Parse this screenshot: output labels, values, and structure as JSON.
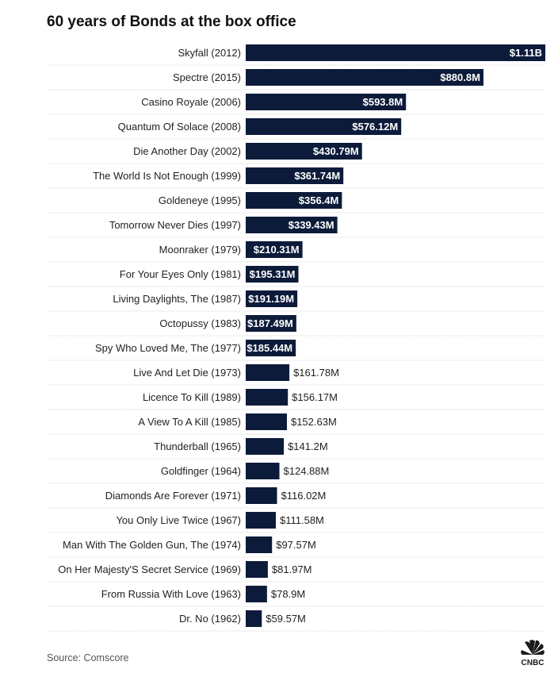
{
  "chart_data": {
    "type": "bar",
    "orientation": "horizontal",
    "title": "60 years of Bonds at the box office",
    "source": "Source: Comscore",
    "unit": "USD",
    "categories": [
      "Skyfall (2012)",
      "Spectre (2015)",
      "Casino Royale (2006)",
      "Quantum Of Solace (2008)",
      "Die Another Day (2002)",
      "The World Is Not Enough (1999)",
      "Goldeneye (1995)",
      "Tomorrow Never Dies (1997)",
      "Moonraker (1979)",
      "For Your Eyes Only (1981)",
      "Living Daylights, The (1987)",
      "Octopussy (1983)",
      "Spy Who Loved Me, The (1977)",
      "Live And Let Die (1973)",
      "Licence To Kill (1989)",
      "A View To A Kill (1985)",
      "Thunderball (1965)",
      "Goldfinger (1964)",
      "Diamonds Are Forever (1971)",
      "You Only Live Twice (1967)",
      "Man With The Golden Gun, The (1974)",
      "On Her Majesty'S Secret Service (1969)",
      "From Russia With Love (1963)",
      "Dr. No (1962)"
    ],
    "values": [
      1110,
      880.8,
      593.8,
      576.12,
      430.79,
      361.74,
      356.4,
      339.43,
      210.31,
      195.31,
      191.19,
      187.49,
      185.44,
      161.78,
      156.17,
      152.63,
      141.2,
      124.88,
      116.02,
      111.58,
      97.57,
      81.97,
      78.9,
      59.57
    ],
    "value_labels": [
      "$1.11B",
      "$880.8M",
      "$593.8M",
      "$576.12M",
      "$430.79M",
      "$361.74M",
      "$356.4M",
      "$339.43M",
      "$210.31M",
      "$195.31M",
      "$191.19M",
      "$187.49M",
      "$185.44M",
      "$161.78M",
      "$156.17M",
      "$152.63M",
      "$141.2M",
      "$124.88M",
      "$116.02M",
      "$111.58M",
      "$97.57M",
      "$81.97M",
      "$78.9M",
      "$59.57M"
    ],
    "value_scale": "millions",
    "xlim": [
      0,
      1110
    ],
    "colors": {
      "bar": "#0c1b3a",
      "separator": "#d9d9d9"
    },
    "grid": false,
    "legend": false
  },
  "branding": {
    "logo": "CNBC",
    "logo_icon": "peacock-icon"
  }
}
